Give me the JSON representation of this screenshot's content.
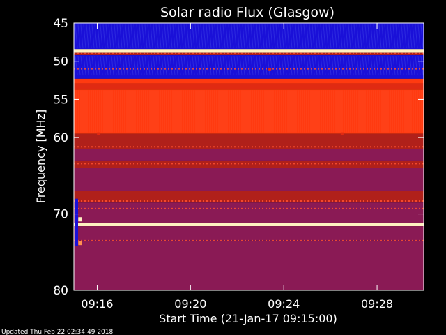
{
  "chart_data": {
    "type": "heatmap",
    "title": "Solar radio Flux (Glasgow)",
    "xlabel": "Start Time (21-Jan-17 09:15:00)",
    "ylabel": "Frequency [MHz]",
    "xaxis": {
      "unit": "minutes after 09:15:00",
      "range": [
        0.0,
        15.0
      ],
      "ticks": [
        {
          "value": 1,
          "label": "09:16"
        },
        {
          "value": 5,
          "label": "09:20"
        },
        {
          "value": 9,
          "label": "09:24"
        },
        {
          "value": 13,
          "label": "09:28"
        }
      ]
    },
    "yaxis": {
      "unit": "MHz",
      "range": [
        45,
        80
      ],
      "reversed": true,
      "ticks": [
        {
          "value": 45,
          "label": "45"
        },
        {
          "value": 50,
          "label": "50"
        },
        {
          "value": 55,
          "label": "55"
        },
        {
          "value": 60,
          "label": "60"
        },
        {
          "value": 70,
          "label": "70"
        },
        {
          "value": 80,
          "label": "80"
        }
      ]
    },
    "colormap": [
      "#0a0a5a",
      "#1a10d8",
      "#3a2ad8",
      "#6a1a7a",
      "#8a1a55",
      "#b0201a",
      "#e02a12",
      "#ff3a10",
      "#ff9050",
      "#fff0c0"
    ],
    "frequency_bands": [
      {
        "from": 45.0,
        "to": 48.4,
        "level": 0.08
      },
      {
        "from": 48.4,
        "to": 48.9,
        "level": 0.98
      },
      {
        "from": 48.9,
        "to": 49.2,
        "level": 0.6
      },
      {
        "from": 49.2,
        "to": 51.9,
        "level": 0.12
      },
      {
        "from": 51.9,
        "to": 52.3,
        "level": 0.06
      },
      {
        "from": 52.3,
        "to": 52.9,
        "level": 0.74
      },
      {
        "from": 52.9,
        "to": 53.7,
        "level": 0.68
      },
      {
        "from": 53.7,
        "to": 59.5,
        "level": 0.78
      },
      {
        "from": 59.5,
        "to": 61.5,
        "level": 0.56
      },
      {
        "from": 61.5,
        "to": 63.0,
        "level": 0.43
      },
      {
        "from": 63.0,
        "to": 64.0,
        "level": 0.5
      },
      {
        "from": 64.0,
        "to": 67.0,
        "level": 0.4
      },
      {
        "from": 67.0,
        "to": 68.5,
        "level": 0.5
      },
      {
        "from": 68.5,
        "to": 71.2,
        "level": 0.42
      },
      {
        "from": 71.2,
        "to": 71.6,
        "level": 0.95
      },
      {
        "from": 71.6,
        "to": 73.5,
        "level": 0.48
      },
      {
        "from": 73.5,
        "to": 80.0,
        "level": 0.4
      }
    ],
    "striated_lines": [
      49.0,
      51.0,
      61.2,
      63.4,
      68.3,
      69.3,
      73.5
    ],
    "features": [
      {
        "x": 8.4,
        "y": 51.1,
        "level": 0.7
      },
      {
        "x": 1.05,
        "y": 59.5,
        "level": 0.72
      },
      {
        "x": 11.5,
        "y": 59.5,
        "level": 0.72
      },
      {
        "x": 0.25,
        "y": 70.7,
        "level": 1.0
      },
      {
        "x": 0.25,
        "y": 73.8,
        "level": 0.85
      }
    ]
  },
  "footer": {
    "updated": "Updated Thu Feb 22 02:34:49 2018"
  }
}
